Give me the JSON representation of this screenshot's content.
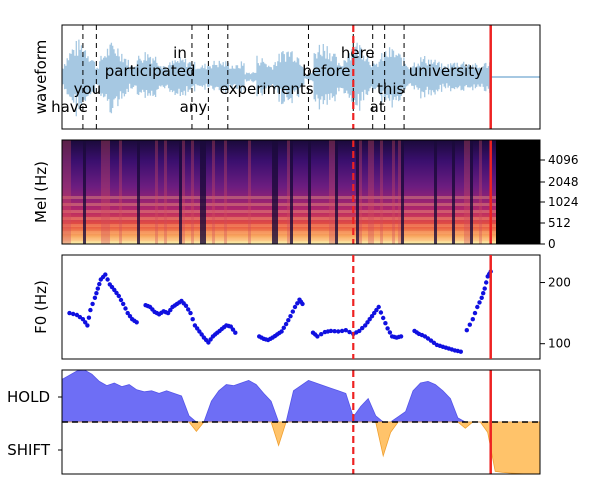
{
  "chart_data": [
    {
      "type": "line",
      "ylabel": "waveform",
      "grid": false,
      "words": [
        {
          "text": "have",
          "t": 0.5
        },
        {
          "text": "you",
          "t": 1.7
        },
        {
          "text": "participated",
          "t": 5.9
        },
        {
          "text": "in",
          "t": 7.9
        },
        {
          "text": "any",
          "t": 8.8
        },
        {
          "text": "experiments",
          "t": 13.7
        },
        {
          "text": "before",
          "t": 17.7
        },
        {
          "text": "here",
          "t": 19.8
        },
        {
          "text": "at",
          "t": 21.1
        },
        {
          "text": "this",
          "t": 22.0
        },
        {
          "text": "university",
          "t": 25.7
        }
      ],
      "word_boundaries": [
        1.4,
        2.3,
        8.7,
        9.8,
        11.1,
        16.5,
        19.5,
        20.8,
        21.6,
        22.9
      ],
      "dashed_marker": 19.5,
      "solid_marker": 28.7,
      "x_range": [
        0,
        32
      ]
    },
    {
      "type": "heatmap",
      "ylabel": "Mel (Hz)",
      "yticks": [
        "0",
        "512",
        "1024",
        "2048",
        "4096"
      ],
      "x_range": [
        0,
        32
      ]
    },
    {
      "type": "scatter",
      "ylabel": "F0 (Hz)",
      "yticks": [
        100,
        200
      ],
      "ylim": [
        75,
        245
      ],
      "x_range": [
        0,
        32
      ],
      "segments": [
        [
          [
            0.5,
            150
          ],
          [
            1.0,
            147
          ],
          [
            1.4,
            140
          ],
          [
            1.7,
            130
          ],
          [
            1.9,
            155
          ],
          [
            2.2,
            175
          ],
          [
            2.4,
            190
          ],
          [
            2.6,
            205
          ],
          [
            2.9,
            213
          ],
          [
            3.2,
            197
          ],
          [
            3.5,
            188
          ],
          [
            3.8,
            178
          ],
          [
            4.1,
            165
          ],
          [
            4.4,
            150
          ],
          [
            4.7,
            140
          ],
          [
            5.0,
            135
          ]
        ],
        [
          [
            5.6,
            163
          ],
          [
            5.9,
            160
          ],
          [
            6.2,
            152
          ],
          [
            6.5,
            148
          ],
          [
            6.8,
            153
          ],
          [
            7.1,
            150
          ],
          [
            7.4,
            160
          ],
          [
            7.7,
            165
          ],
          [
            8.0,
            170
          ],
          [
            8.3,
            162
          ],
          [
            8.6,
            150
          ],
          [
            8.9,
            130
          ],
          [
            9.2,
            120
          ],
          [
            9.5,
            110
          ],
          [
            9.8,
            102
          ],
          [
            10.1,
            112
          ],
          [
            10.4,
            118
          ],
          [
            10.7,
            124
          ],
          [
            11.0,
            130
          ],
          [
            11.3,
            128
          ],
          [
            11.6,
            118
          ]
        ],
        [
          [
            13.2,
            112
          ],
          [
            13.5,
            108
          ],
          [
            13.8,
            106
          ],
          [
            14.1,
            110
          ],
          [
            14.4,
            115
          ],
          [
            14.7,
            120
          ],
          [
            15.0,
            132
          ],
          [
            15.3,
            145
          ],
          [
            15.6,
            160
          ],
          [
            15.9,
            172
          ],
          [
            16.1,
            165
          ]
        ],
        [
          [
            16.8,
            118
          ],
          [
            17.1,
            112
          ],
          [
            17.6,
            119
          ],
          [
            18.0,
            121
          ],
          [
            18.5,
            120
          ],
          [
            19.0,
            122
          ],
          [
            19.5,
            116
          ],
          [
            19.9,
            121
          ],
          [
            20.3,
            130
          ],
          [
            20.6,
            140
          ],
          [
            20.9,
            150
          ],
          [
            21.2,
            160
          ],
          [
            21.5,
            142
          ],
          [
            21.8,
            125
          ],
          [
            22.1,
            112
          ],
          [
            22.4,
            110
          ],
          [
            22.7,
            112
          ]
        ],
        [
          [
            23.6,
            121
          ],
          [
            23.9,
            116
          ],
          [
            24.3,
            112
          ],
          [
            24.7,
            105
          ],
          [
            25.1,
            98
          ],
          [
            25.5,
            95
          ],
          [
            25.9,
            92
          ],
          [
            26.3,
            89
          ],
          [
            26.7,
            87
          ]
        ],
        [
          [
            27.1,
            122
          ],
          [
            27.5,
            140
          ],
          [
            27.8,
            160
          ],
          [
            28.1,
            175
          ],
          [
            28.3,
            190
          ],
          [
            28.5,
            210
          ],
          [
            28.7,
            218
          ]
        ]
      ]
    },
    {
      "type": "area",
      "categories": [
        "HOLD",
        "SHIFT"
      ],
      "ylim": [
        -1,
        1
      ],
      "baseline": 0,
      "colors": {
        "hold": "#6e6ef5",
        "shift": "#ffc36a"
      },
      "x_range": [
        0,
        32
      ],
      "x": [
        0,
        0.5,
        1,
        1.5,
        2,
        2.5,
        3,
        3.5,
        4,
        4.5,
        5,
        5.5,
        6,
        6.5,
        7,
        7.5,
        8,
        8.5,
        9,
        9.5,
        10,
        10.5,
        11,
        11.5,
        12,
        12.5,
        13,
        13.5,
        14,
        14.5,
        15,
        15.5,
        16,
        16.5,
        17,
        17.5,
        18,
        18.5,
        19,
        19.5,
        20,
        20.5,
        21,
        21.5,
        22,
        22.5,
        23,
        23.5,
        24,
        24.5,
        25,
        25.5,
        26,
        26.5,
        27,
        27.5,
        28,
        28.5,
        29,
        29.5,
        30,
        30.5,
        31,
        31.5,
        32
      ],
      "values": [
        0.82,
        0.9,
        0.98,
        1.0,
        0.92,
        0.78,
        0.7,
        0.75,
        0.68,
        0.72,
        0.62,
        0.58,
        0.6,
        0.55,
        0.6,
        0.55,
        0.5,
        0.12,
        -0.18,
        0.0,
        0.4,
        0.6,
        0.72,
        0.7,
        0.75,
        0.8,
        0.72,
        0.55,
        0.4,
        -0.45,
        0.0,
        0.6,
        0.7,
        0.8,
        0.75,
        0.7,
        0.65,
        0.6,
        0.55,
        0.1,
        0.3,
        0.45,
        0.12,
        -0.65,
        -0.2,
        0.1,
        0.2,
        0.6,
        0.75,
        0.78,
        0.72,
        0.6,
        0.45,
        0.08,
        -0.12,
        0.0,
        0.0,
        -0.2,
        -0.95,
        -0.97,
        -0.98,
        -0.99,
        -1.0,
        -1.0,
        -1.0
      ],
      "dashed_marker": 19.5,
      "solid_marker": 28.7
    }
  ]
}
